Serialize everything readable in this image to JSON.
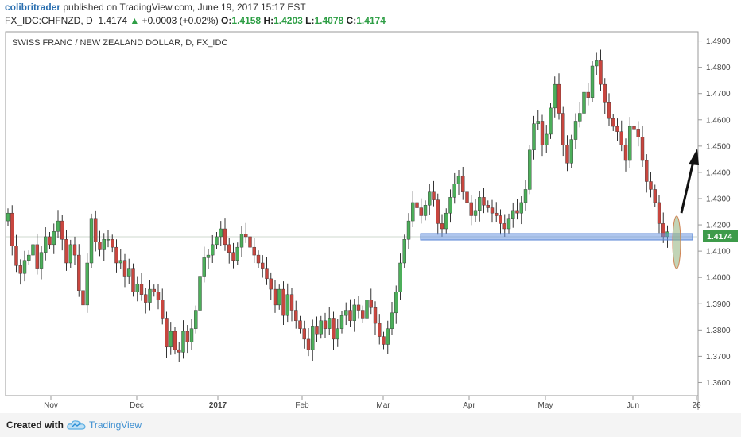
{
  "header": {
    "user": "colibritrader",
    "published_text": "published on TradingView.com, June 19, 2017 15:17 EST",
    "symbol": "FX_IDC:CHFNZD, D",
    "last": "1.4174",
    "change_arrow": "▲",
    "change": "+0.0003 (+0.02%)",
    "o_label": "O:",
    "o_value": "1.4158",
    "h_label": "H:",
    "h_value": "1.4203",
    "l_label": "L:",
    "l_value": "1.4078",
    "c_label": "C:",
    "c_value": "1.4174"
  },
  "footer": {
    "created_with": "Created with",
    "brand": "TradingView",
    "logo_icon": "tradingview-cloud-icon"
  },
  "colors": {
    "up": "#4cae5a",
    "down": "#c8463f",
    "wick": "#333333",
    "zone": "#6e98e0",
    "ellipse": "#8fb07a",
    "price_label": "#3d9b4a",
    "arrow": "#111111"
  },
  "chart_data": {
    "type": "candlestick",
    "title": "SWISS FRANC / NEW ZEALAND DOLLAR, D, FX_IDC",
    "x_ticks": [
      "Nov",
      "Dec",
      "2017",
      "Feb",
      "Mar",
      "Apr",
      "May",
      "Jun",
      "26"
    ],
    "y_ticks": [
      "1.4900",
      "1.4800",
      "1.4700",
      "1.4600",
      "1.4500",
      "1.4400",
      "1.4300",
      "1.4200",
      "1.4100",
      "1.4000",
      "1.3900",
      "1.3800",
      "1.3700",
      "1.3600"
    ],
    "ylim": [
      1.355,
      1.4935
    ],
    "last_price_label": "1.4174",
    "grid": false,
    "close_series": [
      1.4245,
      1.412,
      1.4045,
      1.4015,
      1.4065,
      1.4085,
      1.4125,
      1.4035,
      1.4095,
      1.4155,
      1.4125,
      1.4175,
      1.4215,
      1.4145,
      1.4055,
      1.4125,
      1.4085,
      1.395,
      1.3895,
      1.4055,
      1.4225,
      1.4135,
      1.4105,
      1.4145,
      1.4145,
      1.4115,
      1.4055,
      1.4065,
      1.4005,
      1.4035,
      1.3945,
      1.3975,
      1.3935,
      1.3905,
      1.3955,
      1.3945,
      1.3915,
      1.3845,
      1.3735,
      1.3795,
      1.3725,
      1.3715,
      1.3795,
      1.3755,
      1.3805,
      1.3875,
      1.4005,
      1.4075,
      1.4085,
      1.4125,
      1.4155,
      1.4185,
      1.4125,
      1.4095,
      1.4065,
      1.4115,
      1.4165,
      1.4155,
      1.4115,
      1.4085,
      1.4055,
      1.4035,
      1.3995,
      1.3955,
      1.3895,
      1.3955,
      1.3855,
      1.3935,
      1.3875,
      1.3835,
      1.3805,
      1.3765,
      1.3725,
      1.3815,
      1.3785,
      1.3835,
      1.3805,
      1.3845,
      1.3765,
      1.3805,
      1.3855,
      1.3875,
      1.3835,
      1.3895,
      1.3875,
      1.3845,
      1.3915,
      1.3885,
      1.3825,
      1.3775,
      1.3745,
      1.3805,
      1.3865,
      1.3945,
      1.4055,
      1.4145,
      1.4215,
      1.4285,
      1.4265,
      1.4235,
      1.4275,
      1.4325,
      1.4295,
      1.4205,
      1.4185,
      1.4245,
      1.4305,
      1.4355,
      1.4385,
      1.4325,
      1.4285,
      1.4235,
      1.4255,
      1.4305,
      1.4275,
      1.4265,
      1.4245,
      1.4235,
      1.4205,
      1.4185,
      1.4225,
      1.4255,
      1.4245,
      1.4285,
      1.4335,
      1.4485,
      1.4585,
      1.4595,
      1.4505,
      1.4545,
      1.4645,
      1.4735,
      1.4625,
      1.4505,
      1.4435,
      1.4525,
      1.4595,
      1.4625,
      1.4705,
      1.4685,
      1.4805,
      1.4825,
      1.4735,
      1.4665,
      1.4605,
      1.4575,
      1.4555,
      1.4505,
      1.4445,
      1.4575,
      1.4565,
      1.4535,
      1.4445,
      1.4365,
      1.4335,
      1.4285,
      1.4205,
      1.4155,
      1.4174
    ]
  }
}
